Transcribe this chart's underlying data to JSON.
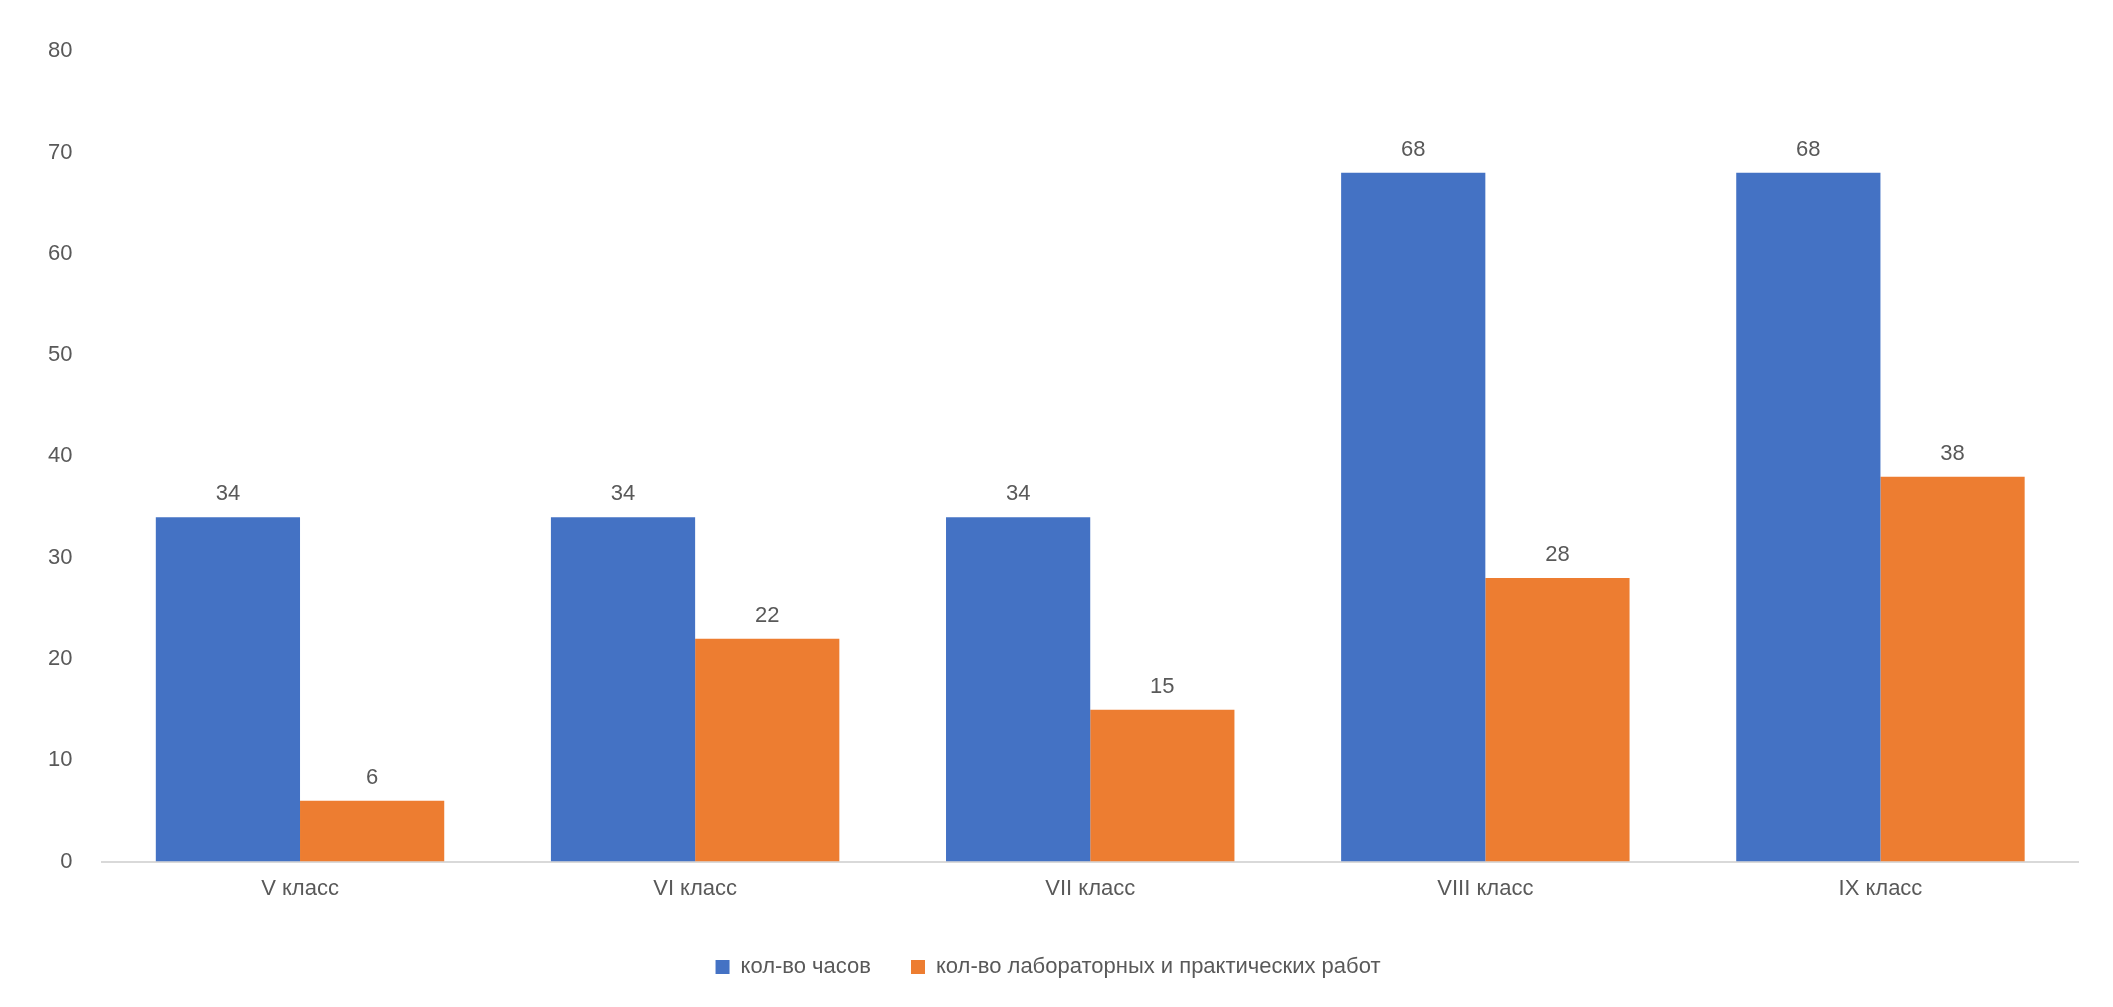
{
  "chart_data": {
    "type": "bar",
    "categories": [
      "V класс",
      "VI класс",
      "VII класс",
      "VIII класс",
      "IX класс"
    ],
    "series": [
      {
        "name": "кол-во часов",
        "color": "#4472c4",
        "values": [
          34,
          34,
          34,
          68,
          68
        ]
      },
      {
        "name": "кол-во лабораторных и практических работ",
        "color": "#ed7d31",
        "values": [
          6,
          22,
          15,
          28,
          38
        ]
      }
    ],
    "ylim": [
      0,
      80
    ],
    "yticks": [
      0,
      10,
      20,
      30,
      40,
      50,
      60,
      70,
      80
    ],
    "data_labels": true,
    "legend": "bottom",
    "grid": false
  }
}
